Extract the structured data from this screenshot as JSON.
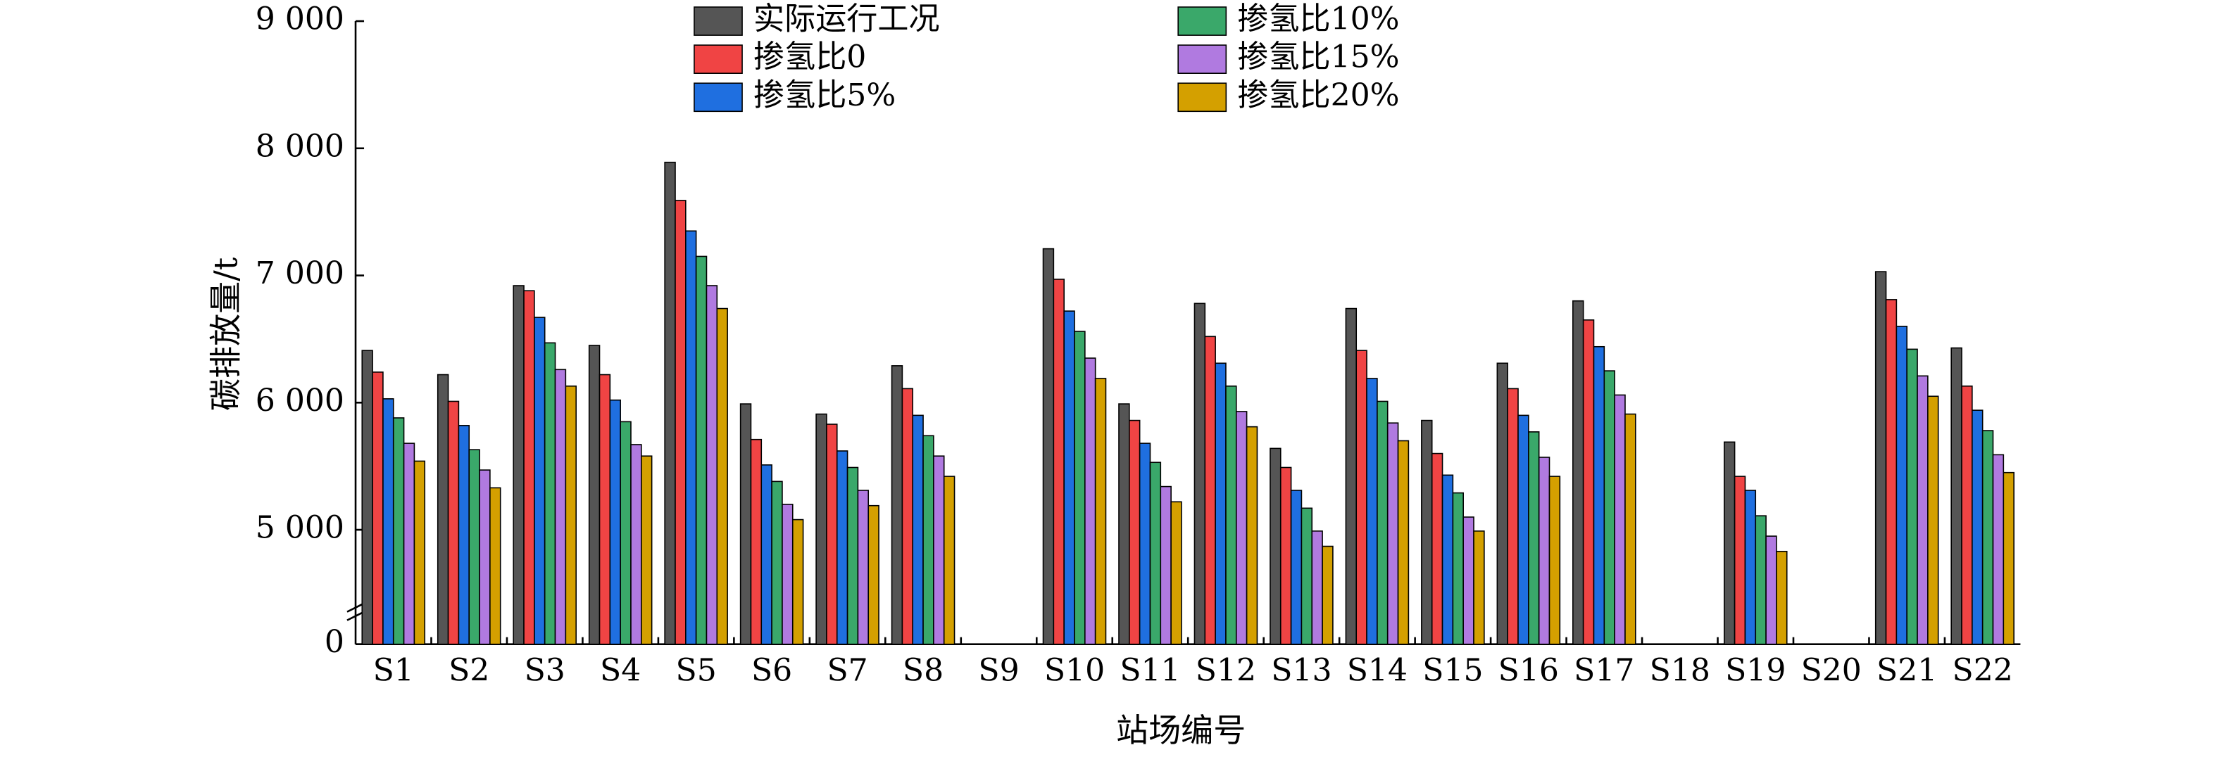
{
  "chart_data": {
    "type": "bar",
    "xlabel": "站场编号",
    "ylabel": "碳排放量/t",
    "categories": [
      "S1",
      "S2",
      "S3",
      "S4",
      "S5",
      "S6",
      "S7",
      "S8",
      "S9",
      "S10",
      "S11",
      "S12",
      "S13",
      "S14",
      "S15",
      "S16",
      "S17",
      "S18",
      "S19",
      "S20",
      "S21",
      "S22"
    ],
    "series": [
      {
        "name": "实际运行工况",
        "color": "#555555",
        "values": [
          6410,
          6220,
          6920,
          6450,
          7890,
          5990,
          5910,
          6290,
          null,
          7210,
          5990,
          6780,
          5640,
          6740,
          5860,
          6310,
          6800,
          null,
          5690,
          null,
          7030,
          6430
        ]
      },
      {
        "name": "掺氢比0",
        "color": "#f04444",
        "values": [
          6240,
          6010,
          6880,
          6220,
          7590,
          5710,
          5830,
          6110,
          null,
          6970,
          5860,
          6520,
          5490,
          6410,
          5600,
          6110,
          6650,
          null,
          5420,
          null,
          6810,
          6130
        ]
      },
      {
        "name": "掺氢比5%",
        "color": "#1f6fe0",
        "values": [
          6030,
          5820,
          6670,
          6020,
          7350,
          5510,
          5620,
          5900,
          null,
          6720,
          5680,
          6310,
          5310,
          6190,
          5430,
          5900,
          6440,
          null,
          5310,
          null,
          6600,
          5940
        ]
      },
      {
        "name": "掺氢比10%",
        "color": "#3aa86a",
        "values": [
          5880,
          5630,
          6470,
          5850,
          7150,
          5380,
          5490,
          5740,
          null,
          6560,
          5530,
          6130,
          5170,
          6010,
          5290,
          5770,
          6250,
          null,
          5110,
          null,
          6420,
          5780
        ]
      },
      {
        "name": "掺氢比15%",
        "color": "#b07ae0",
        "values": [
          5680,
          5470,
          6260,
          5670,
          6920,
          5200,
          5310,
          5580,
          null,
          6350,
          5340,
          5930,
          4990,
          5840,
          5100,
          5570,
          6060,
          null,
          4950,
          null,
          6210,
          5590
        ]
      },
      {
        "name": "掺氢比20%",
        "color": "#d4a000",
        "values": [
          5540,
          5330,
          6130,
          5580,
          6740,
          5080,
          5190,
          5420,
          null,
          6190,
          5220,
          5810,
          4870,
          5700,
          4990,
          5420,
          5910,
          null,
          4830,
          null,
          6050,
          5450
        ]
      }
    ],
    "ylim": [
      0,
      9000
    ],
    "axis_break": [
      0,
      4100
    ],
    "yticks": [
      0,
      {
        "value": 5000,
        "label": "5 000"
      },
      {
        "value": 6000,
        "label": "6 000"
      },
      {
        "value": 7000,
        "label": "7 000"
      },
      {
        "value": 8000,
        "label": "8 000"
      },
      {
        "value": 9000,
        "label": "9 000"
      }
    ],
    "grid": false
  }
}
